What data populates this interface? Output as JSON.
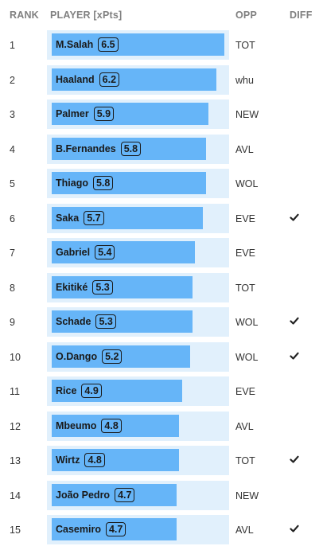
{
  "headers": {
    "rank": "RANK",
    "player": "PLAYER [xPts]",
    "opp": "OPP",
    "diff": "DIFF"
  },
  "max_xpts": 6.5,
  "rows": [
    {
      "rank": "1",
      "player": "M.Salah",
      "xpts": "6.5",
      "opp": "TOT",
      "diff": false
    },
    {
      "rank": "2",
      "player": "Haaland",
      "xpts": "6.2",
      "opp": "whu",
      "diff": false
    },
    {
      "rank": "3",
      "player": "Palmer",
      "xpts": "5.9",
      "opp": "NEW",
      "diff": false
    },
    {
      "rank": "4",
      "player": "B.Fernandes",
      "xpts": "5.8",
      "opp": "AVL",
      "diff": false
    },
    {
      "rank": "5",
      "player": "Thiago",
      "xpts": "5.8",
      "opp": "WOL",
      "diff": false
    },
    {
      "rank": "6",
      "player": "Saka",
      "xpts": "5.7",
      "opp": "EVE",
      "diff": true
    },
    {
      "rank": "7",
      "player": "Gabriel",
      "xpts": "5.4",
      "opp": "EVE",
      "diff": false
    },
    {
      "rank": "8",
      "player": "Ekitiké",
      "xpts": "5.3",
      "opp": "TOT",
      "diff": false
    },
    {
      "rank": "9",
      "player": "Schade",
      "xpts": "5.3",
      "opp": "WOL",
      "diff": true
    },
    {
      "rank": "10",
      "player": "O.Dango",
      "xpts": "5.2",
      "opp": "WOL",
      "diff": true
    },
    {
      "rank": "11",
      "player": "Rice",
      "xpts": "4.9",
      "opp": "EVE",
      "diff": false
    },
    {
      "rank": "12",
      "player": "Mbeumo",
      "xpts": "4.8",
      "opp": "AVL",
      "diff": false
    },
    {
      "rank": "13",
      "player": "Wirtz",
      "xpts": "4.8",
      "opp": "TOT",
      "diff": true
    },
    {
      "rank": "14",
      "player": "João Pedro",
      "xpts": "4.7",
      "opp": "NEW",
      "diff": false
    },
    {
      "rank": "15",
      "player": "Casemiro",
      "xpts": "4.7",
      "opp": "AVL",
      "diff": true
    }
  ],
  "colors": {
    "bar": "#66b5f8",
    "track": "#e1f0fc",
    "header": "#808080"
  },
  "icons": {
    "diff": "checkmark-icon"
  }
}
